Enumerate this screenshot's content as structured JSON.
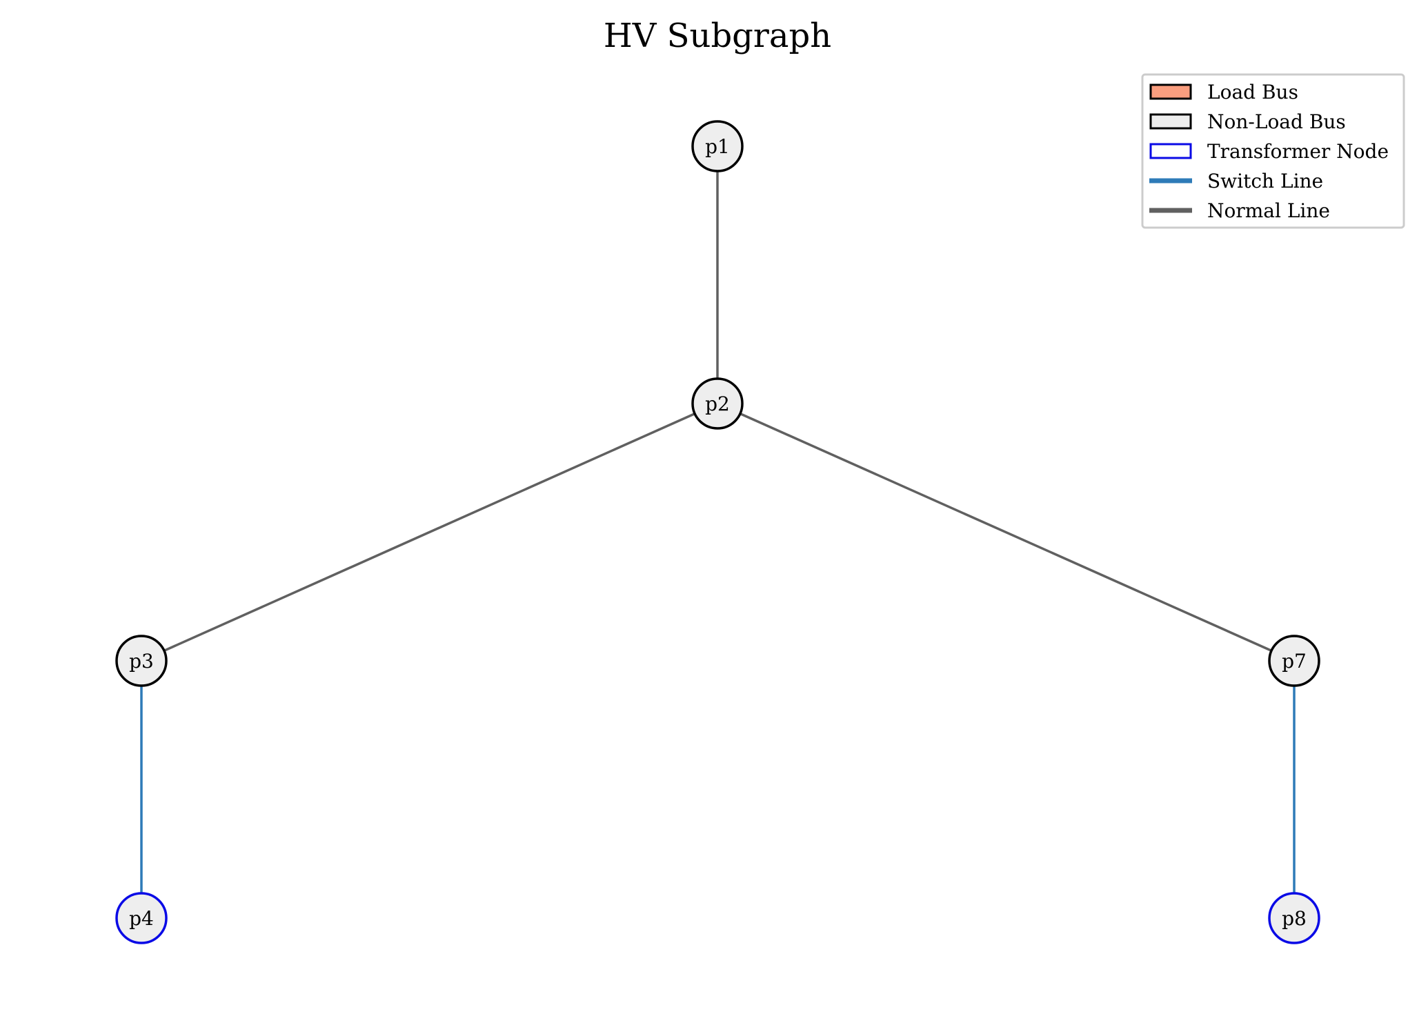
{
  "title": "HV Subgraph",
  "colors": {
    "load_bus_fill": "#fa9e7f",
    "non_load_bus_fill": "#eeeeee",
    "bus_stroke": "#000000",
    "transformer_stroke": "#0a0ae6",
    "switch_line": "#2e7bb8",
    "normal_line": "#606060",
    "legend_border": "#cccccc"
  },
  "nodes": [
    {
      "id": "p1",
      "label": "p1",
      "kind": "non-load-bus"
    },
    {
      "id": "p2",
      "label": "p2",
      "kind": "non-load-bus"
    },
    {
      "id": "p3",
      "label": "p3",
      "kind": "non-load-bus"
    },
    {
      "id": "p7",
      "label": "p7",
      "kind": "non-load-bus"
    },
    {
      "id": "p4",
      "label": "p4",
      "kind": "transformer"
    },
    {
      "id": "p8",
      "label": "p8",
      "kind": "transformer"
    }
  ],
  "edges": [
    {
      "from": "p1",
      "to": "p2",
      "type": "normal"
    },
    {
      "from": "p2",
      "to": "p3",
      "type": "normal"
    },
    {
      "from": "p2",
      "to": "p7",
      "type": "normal"
    },
    {
      "from": "p3",
      "to": "p4",
      "type": "switch"
    },
    {
      "from": "p7",
      "to": "p8",
      "type": "switch"
    }
  ],
  "legend": {
    "position": "top-right",
    "items": [
      {
        "label": "Load Bus",
        "marker": "patch",
        "kind": "load-bus"
      },
      {
        "label": "Non-Load Bus",
        "marker": "patch",
        "kind": "non-load-bus"
      },
      {
        "label": "Transformer Node",
        "marker": "patch",
        "kind": "transformer"
      },
      {
        "label": "Switch Line",
        "marker": "line",
        "kind": "switch"
      },
      {
        "label": "Normal Line",
        "marker": "line",
        "kind": "normal"
      }
    ]
  }
}
